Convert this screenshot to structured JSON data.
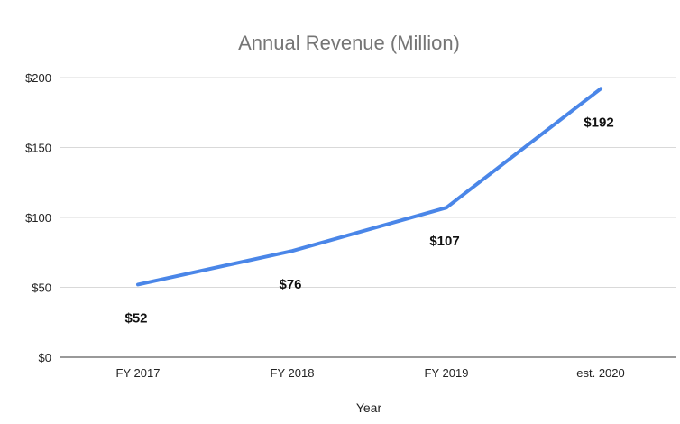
{
  "chart_data": {
    "type": "line",
    "title": "Annual Revenue (Million)",
    "xlabel": "Year",
    "ylabel": "",
    "categories": [
      "FY 2017",
      "FY 2018",
      "FY 2019",
      "est. 2020"
    ],
    "series": [
      {
        "values": [
          52,
          76,
          107,
          192
        ],
        "color": "#4a86e8"
      }
    ],
    "data_labels": [
      "$52",
      "$76",
      "$107",
      "$192"
    ],
    "ylim": [
      0,
      200
    ],
    "yticks": [
      0,
      50,
      100,
      150,
      200
    ],
    "ytick_labels": [
      "$0",
      "$50",
      "$100",
      "$150",
      "$200"
    ],
    "grid": true,
    "legend": "none"
  }
}
